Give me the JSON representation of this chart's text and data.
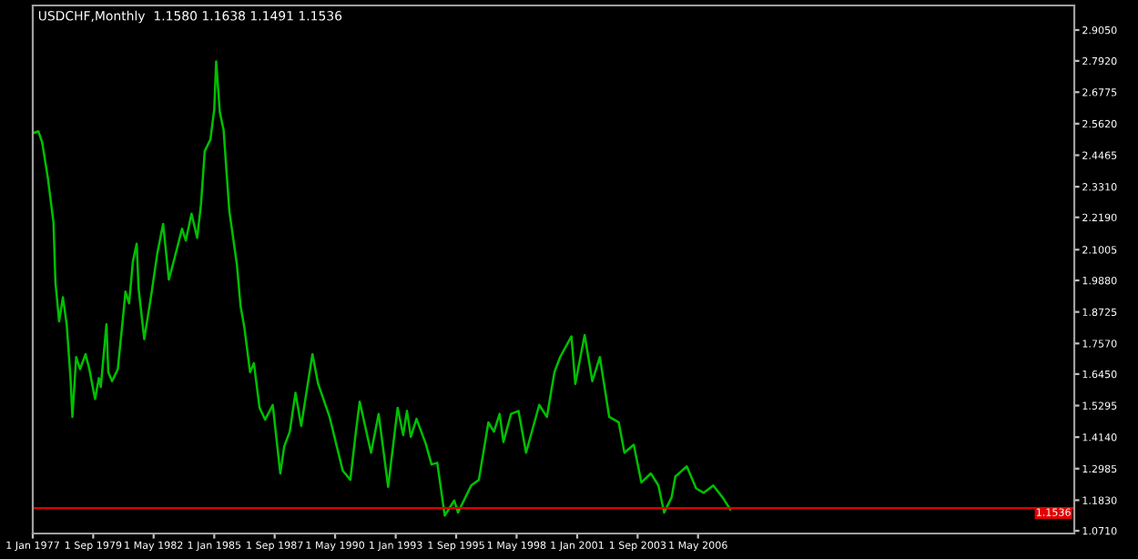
{
  "chart_data": {
    "type": "line",
    "title": "USDCHF,Monthly  1.1580 1.1638 1.1491 1.1536",
    "x": [
      "1977-01",
      "1977-04",
      "1977-06",
      "1977-09",
      "1977-12",
      "1978-01",
      "1978-03",
      "1978-05",
      "1978-07",
      "1978-09",
      "1978-10",
      "1978-12",
      "1979-02",
      "1979-05",
      "1979-07",
      "1979-10",
      "1979-12",
      "1980-01",
      "1980-04",
      "1980-05",
      "1980-07",
      "1980-10",
      "1981-01",
      "1981-02",
      "1981-04",
      "1981-06",
      "1981-08",
      "1981-09",
      "1981-12",
      "1982-04",
      "1982-07",
      "1982-10",
      "1983-01",
      "1983-04",
      "1983-08",
      "1983-10",
      "1984-01",
      "1984-04",
      "1984-06",
      "1984-08",
      "1984-11",
      "1985-01",
      "1985-02",
      "1985-04",
      "1985-06",
      "1985-09",
      "1986-01",
      "1986-03",
      "1986-05",
      "1986-08",
      "1986-10",
      "1987-01",
      "1987-04",
      "1987-08",
      "1987-12",
      "1988-02",
      "1988-05",
      "1988-08",
      "1988-11",
      "1989-05",
      "1989-08",
      "1990-02",
      "1990-09",
      "1991-01",
      "1991-04",
      "1991-06",
      "1991-12",
      "1992-04",
      "1992-09",
      "1993-02",
      "1993-05",
      "1993-07",
      "1993-09",
      "1993-12",
      "1994-05",
      "1994-08",
      "1994-11",
      "1995-03",
      "1995-08",
      "1995-10",
      "1996-05",
      "1996-09",
      "1997-02",
      "1997-05",
      "1997-08",
      "1997-10",
      "1998-02",
      "1998-06",
      "1998-10",
      "1999-05",
      "1999-09",
      "2000-01",
      "2000-04",
      "2000-10",
      "2000-12",
      "2001-05",
      "2001-09",
      "2002-01",
      "2002-06",
      "2002-11",
      "2003-02",
      "2003-07",
      "2003-11",
      "2004-04",
      "2004-08",
      "2004-11",
      "2005-03",
      "2005-05",
      "2005-11",
      "2006-04",
      "2006-08",
      "2007-01",
      "2007-06",
      "2007-10"
    ],
    "series": [
      {
        "color": "#00c000",
        "values": [
          2.527,
          2.534,
          2.494,
          2.363,
          2.199,
          1.98,
          1.838,
          1.926,
          1.827,
          1.63,
          1.488,
          1.707,
          1.663,
          1.718,
          1.663,
          1.554,
          1.63,
          1.598,
          1.827,
          1.652,
          1.619,
          1.663,
          1.871,
          1.947,
          1.904,
          2.057,
          2.122,
          1.958,
          1.773,
          1.947,
          2.09,
          2.195,
          1.991,
          2.068,
          2.177,
          2.134,
          2.232,
          2.144,
          2.265,
          2.461,
          2.505,
          2.614,
          2.79,
          2.603,
          2.538,
          2.242,
          2.046,
          1.893,
          1.816,
          1.652,
          1.685,
          1.521,
          1.478,
          1.532,
          1.281,
          1.379,
          1.434,
          1.576,
          1.455,
          1.718,
          1.609,
          1.488,
          1.291,
          1.258,
          1.434,
          1.544,
          1.357,
          1.499,
          1.232,
          1.521,
          1.422,
          1.51,
          1.415,
          1.481,
          1.389,
          1.314,
          1.32,
          1.127,
          1.182,
          1.138,
          1.237,
          1.258,
          1.468,
          1.434,
          1.499,
          1.396,
          1.499,
          1.51,
          1.357,
          1.532,
          1.488,
          1.652,
          1.707,
          1.783,
          1.609,
          1.788,
          1.619,
          1.707,
          1.488,
          1.468,
          1.357,
          1.386,
          1.248,
          1.281,
          1.237,
          1.138,
          1.193,
          1.27,
          1.307,
          1.226,
          1.21,
          1.237,
          1.193,
          1.149
        ]
      }
    ],
    "xlim": [
      "1977-01",
      "2022-12"
    ],
    "xticks": [
      {
        "value": "1977-01-01",
        "label": "1 Jan 1977"
      },
      {
        "value": "1979-09-01",
        "label": "1 Sep 1979"
      },
      {
        "value": "1982-05-01",
        "label": "1 May 1982"
      },
      {
        "value": "1985-01-01",
        "label": "1 Jan 1985"
      },
      {
        "value": "1987-09-01",
        "label": "1 Sep 1987"
      },
      {
        "value": "1990-05-01",
        "label": "1 May 1990"
      },
      {
        "value": "1993-01-01",
        "label": "1 Jan 1993"
      },
      {
        "value": "1995-09-01",
        "label": "1 Sep 1995"
      },
      {
        "value": "1998-05-01",
        "label": "1 May 1998"
      },
      {
        "value": "2001-01-01",
        "label": "1 Jan 2001"
      },
      {
        "value": "2003-09-01",
        "label": "1 Sep 2003"
      },
      {
        "value": "2006-05-01",
        "label": "1 May 2006"
      }
    ],
    "ylim": [
      1.061,
      2.995
    ],
    "yticks": [
      {
        "value": 2.905,
        "label": "2.9050"
      },
      {
        "value": 2.792,
        "label": "2.7920"
      },
      {
        "value": 2.6775,
        "label": "2.6775"
      },
      {
        "value": 2.562,
        "label": "2.5620"
      },
      {
        "value": 2.4465,
        "label": "2.4465"
      },
      {
        "value": 2.331,
        "label": "2.3310"
      },
      {
        "value": 2.219,
        "label": "2.2190"
      },
      {
        "value": 2.1005,
        "label": "2.1005"
      },
      {
        "value": 1.988,
        "label": "1.9880"
      },
      {
        "value": 1.8725,
        "label": "1.8725"
      },
      {
        "value": 1.757,
        "label": "1.7570"
      },
      {
        "value": 1.645,
        "label": "1.6450"
      },
      {
        "value": 1.5295,
        "label": "1.5295"
      },
      {
        "value": 1.414,
        "label": "1.4140"
      },
      {
        "value": 1.2985,
        "label": "1.2985"
      },
      {
        "value": 1.183,
        "label": "1.1830"
      },
      {
        "value": 1.071,
        "label": "1.0710"
      }
    ],
    "ref_lines": [
      {
        "axis": "y",
        "value": 1.1536,
        "label": "1.1536",
        "color": "#e00000"
      }
    ],
    "grid": false,
    "legend": false
  }
}
